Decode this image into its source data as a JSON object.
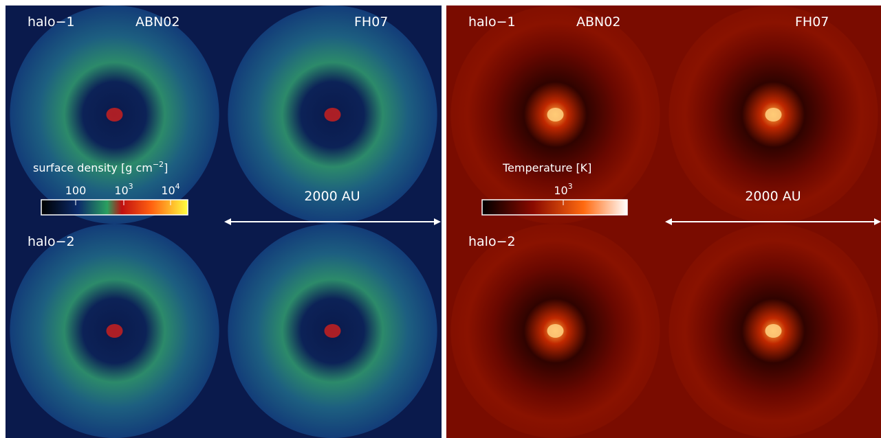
{
  "density_figure": {
    "row_labels": [
      "halo−1",
      "halo−2"
    ],
    "column_labels": [
      "ABN02",
      "FH07"
    ],
    "colorbar": {
      "title": "surface density [g cm",
      "title_exp": "−2",
      "title_end": "]",
      "ticks": [
        {
          "base": "100"
        },
        {
          "base": "10",
          "exp": "3"
        },
        {
          "base": "10",
          "exp": "4"
        }
      ]
    },
    "scale_bar": "2000 AU"
  },
  "temperature_figure": {
    "row_labels": [
      "halo−1",
      "halo−2"
    ],
    "column_labels": [
      "ABN02",
      "FH07"
    ],
    "colorbar": {
      "title": "Temperature [K]",
      "ticks": [
        {
          "base": "10",
          "exp": "3"
        }
      ]
    },
    "scale_bar": "2000 AU"
  }
}
